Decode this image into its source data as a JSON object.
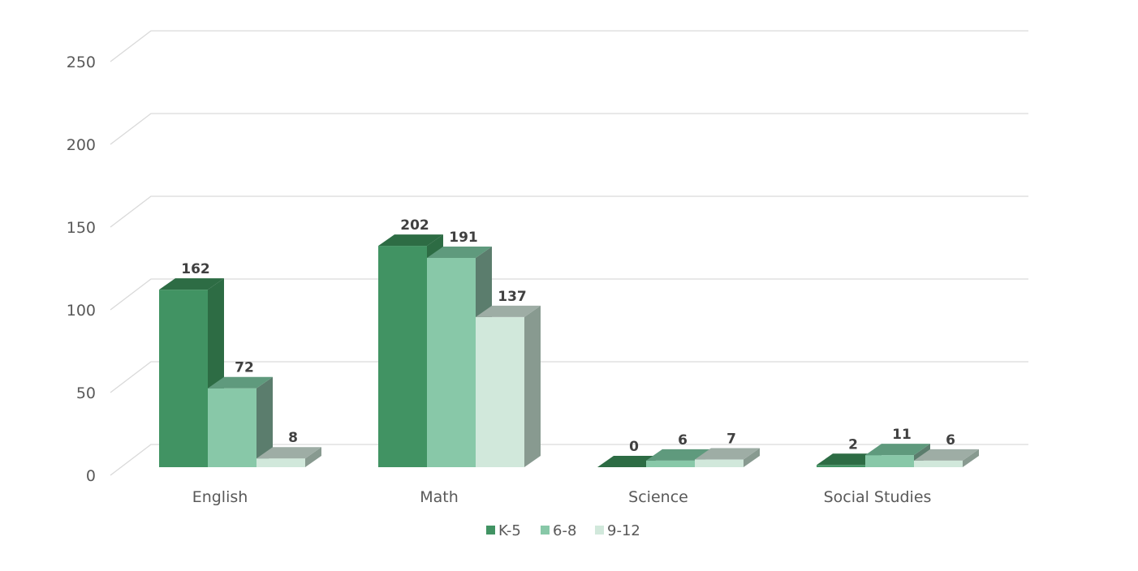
{
  "chart_data": {
    "type": "bar",
    "categories": [
      "English",
      "Math",
      "Science",
      "Social Studies"
    ],
    "series": [
      {
        "name": "K-5",
        "values": [
          162,
          202,
          0,
          2
        ]
      },
      {
        "name": "6-8",
        "values": [
          72,
          191,
          6,
          11
        ]
      },
      {
        "name": "9-12",
        "values": [
          8,
          137,
          7,
          6
        ]
      }
    ],
    "ylim": [
      0,
      250
    ],
    "yticks": [
      "0",
      "50",
      "100",
      "150",
      "200",
      "250"
    ],
    "grid": true,
    "legend": "bottom",
    "colors": {
      "K-5": {
        "front": "#419363",
        "side": "#2D6C44",
        "top": "#2D6C44"
      },
      "6-8": {
        "front": "#88C8A8",
        "side": "#5B7D6D",
        "top": "#5F9A7D"
      },
      "9-12": {
        "front": "#D1E8DB",
        "side": "#889A90",
        "top": "#9EADA5"
      }
    },
    "gridline_color": "#D9D9D9"
  }
}
